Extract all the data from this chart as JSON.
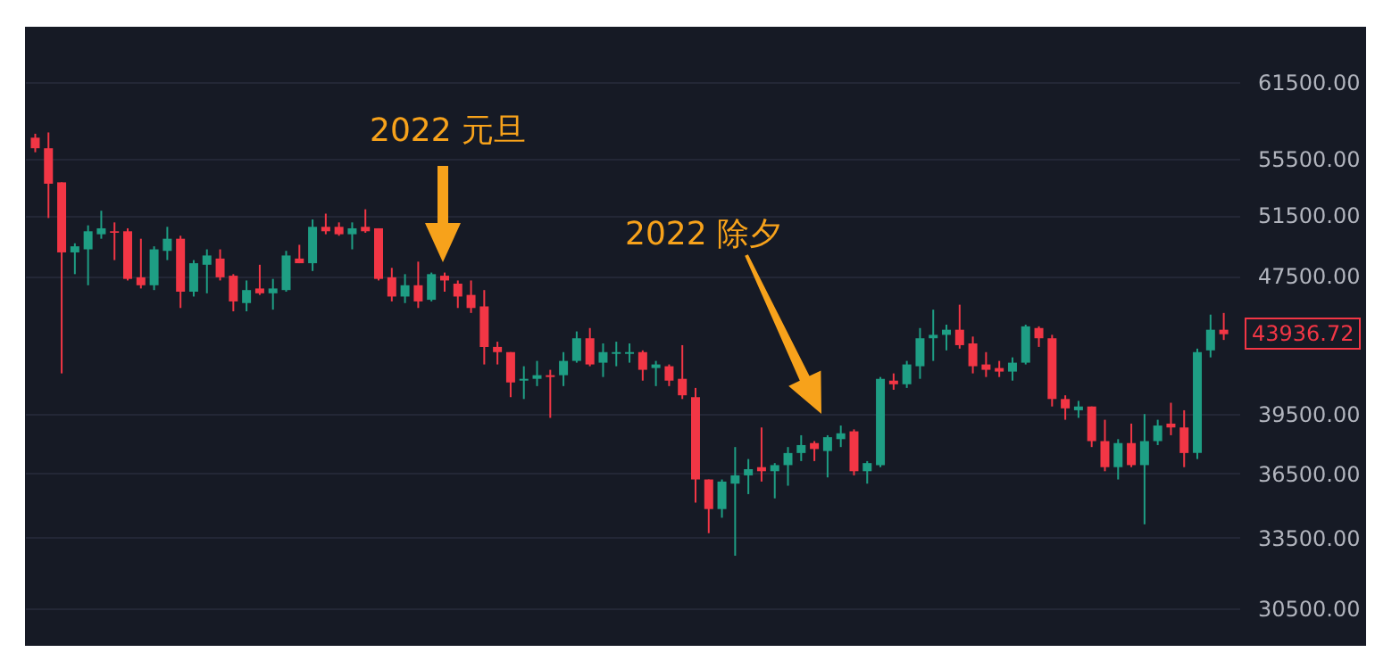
{
  "chart_data": {
    "type": "candlestick",
    "categories": [
      null,
      null,
      null,
      null,
      null,
      null,
      null,
      null,
      null,
      null,
      null,
      null,
      null,
      null,
      null,
      null,
      null,
      null,
      null,
      null,
      null,
      null,
      null,
      null,
      null,
      null,
      null,
      null,
      null,
      null,
      null,
      null,
      null,
      null,
      null,
      null,
      null,
      null,
      null,
      null,
      null,
      null,
      null,
      null,
      null,
      null,
      null,
      null,
      null,
      null,
      null,
      null,
      null,
      null,
      null,
      null,
      null,
      null,
      null,
      null,
      null,
      null,
      null,
      null,
      null,
      null,
      null,
      null,
      null,
      null,
      null,
      null,
      null,
      null,
      null,
      null,
      null,
      null,
      null,
      null,
      null,
      null,
      null,
      null,
      null,
      null,
      null,
      null,
      null,
      null,
      null
    ],
    "ohlc": [
      [
        57100,
        57400,
        56000,
        56300
      ],
      [
        56300,
        57500,
        51300,
        53700
      ],
      [
        53800,
        53800,
        41700,
        49000
      ],
      [
        49000,
        49600,
        47600,
        49400
      ],
      [
        49200,
        50800,
        46900,
        50400
      ],
      [
        50200,
        51800,
        49900,
        50600
      ],
      [
        50400,
        51000,
        48500,
        50300
      ],
      [
        50400,
        50600,
        47200,
        47300
      ],
      [
        47400,
        49900,
        46700,
        46900
      ],
      [
        46900,
        49400,
        46600,
        49200
      ],
      [
        49100,
        50700,
        48500,
        49900
      ],
      [
        49900,
        50100,
        45500,
        46500
      ],
      [
        46500,
        48500,
        46200,
        48300
      ],
      [
        48200,
        49200,
        46400,
        48800
      ],
      [
        48600,
        49200,
        47200,
        47400
      ],
      [
        47500,
        47600,
        45300,
        45900
      ],
      [
        45800,
        47200,
        45300,
        46600
      ],
      [
        46700,
        48200,
        46300,
        46400
      ],
      [
        46400,
        47300,
        45400,
        46700
      ],
      [
        46600,
        49100,
        46500,
        48800
      ],
      [
        48600,
        49500,
        48300,
        48300
      ],
      [
        48300,
        51200,
        47800,
        50700
      ],
      [
        50700,
        51600,
        50200,
        50400
      ],
      [
        50700,
        51000,
        50100,
        50200
      ],
      [
        50200,
        51000,
        49200,
        50600
      ],
      [
        50700,
        51900,
        50300,
        50400
      ],
      [
        50600,
        50600,
        47200,
        47300
      ],
      [
        47400,
        48000,
        45900,
        46200
      ],
      [
        46200,
        47600,
        45800,
        46900
      ],
      [
        46900,
        48400,
        45500,
        45900
      ],
      [
        46000,
        47700,
        45900,
        47600
      ],
      [
        47500,
        47700,
        46500,
        47200
      ],
      [
        47000,
        47200,
        45500,
        46200
      ],
      [
        46300,
        47200,
        45200,
        45500
      ],
      [
        45600,
        46600,
        42200,
        43200
      ],
      [
        43200,
        43500,
        42200,
        42900
      ],
      [
        42900,
        42900,
        40400,
        41200
      ],
      [
        41300,
        42100,
        40300,
        41400
      ],
      [
        41400,
        42400,
        41000,
        41600
      ],
      [
        41600,
        41900,
        39300,
        41500
      ],
      [
        41600,
        42900,
        41000,
        42400
      ],
      [
        42400,
        44100,
        42300,
        43700
      ],
      [
        43700,
        44300,
        42100,
        42200
      ],
      [
        42300,
        43400,
        41500,
        42900
      ],
      [
        42800,
        43500,
        42100,
        42900
      ],
      [
        42800,
        43400,
        42300,
        42900
      ],
      [
        42900,
        43000,
        41300,
        41900
      ],
      [
        42000,
        42400,
        41000,
        42200
      ],
      [
        42100,
        42200,
        41000,
        41300
      ],
      [
        41400,
        43300,
        40300,
        40500
      ],
      [
        40400,
        40900,
        35100,
        36200
      ],
      [
        36200,
        36200,
        33700,
        34800
      ],
      [
        34800,
        36200,
        34400,
        36100
      ],
      [
        36000,
        37800,
        32700,
        36400
      ],
      [
        36400,
        37200,
        35500,
        36700
      ],
      [
        36800,
        38800,
        36100,
        36600
      ],
      [
        36600,
        37000,
        35300,
        36900
      ],
      [
        36900,
        37800,
        35900,
        37500
      ],
      [
        37500,
        38400,
        37100,
        37900
      ],
      [
        38000,
        38100,
        37100,
        37700
      ],
      [
        37600,
        38400,
        36300,
        38300
      ],
      [
        38200,
        38900,
        37800,
        38500
      ],
      [
        38600,
        38700,
        36400,
        36600
      ],
      [
        36600,
        37100,
        36000,
        37000
      ],
      [
        36900,
        41500,
        36800,
        41400
      ],
      [
        41300,
        41700,
        40800,
        41100
      ],
      [
        41100,
        42400,
        40900,
        42200
      ],
      [
        42100,
        44300,
        41400,
        43700
      ],
      [
        43700,
        45400,
        42400,
        43900
      ],
      [
        43900,
        44500,
        43000,
        44200
      ],
      [
        44200,
        45700,
        43100,
        43300
      ],
      [
        43400,
        43800,
        41700,
        42100
      ],
      [
        42200,
        42900,
        41500,
        41900
      ],
      [
        42000,
        42400,
        41500,
        41800
      ],
      [
        41800,
        42600,
        41300,
        42300
      ],
      [
        42300,
        44500,
        42200,
        44400
      ],
      [
        44300,
        44400,
        43200,
        43700
      ],
      [
        43700,
        43900,
        39900,
        40300
      ],
      [
        40300,
        40500,
        39200,
        39800
      ],
      [
        39700,
        40200,
        39300,
        39900
      ],
      [
        39900,
        39900,
        37800,
        38100
      ],
      [
        38100,
        39200,
        36600,
        36800
      ],
      [
        36800,
        38200,
        36200,
        38000
      ],
      [
        38000,
        39000,
        36800,
        36900
      ],
      [
        36900,
        39500,
        34100,
        38100
      ],
      [
        38100,
        39200,
        37900,
        38900
      ],
      [
        39000,
        40100,
        38400,
        38800
      ],
      [
        38800,
        39700,
        36800,
        37500
      ],
      [
        37500,
        43100,
        37200,
        42900
      ],
      [
        43000,
        45100,
        42600,
        44200
      ],
      [
        44200,
        45200,
        43600,
        43936.72
      ]
    ],
    "colors": [
      "#f23645",
      "#f23645",
      "#f23645",
      "#1e9e84",
      "#1e9e84",
      "#1e9e84",
      "#f23645",
      "#f23645",
      "#f23645",
      "#1e9e84",
      "#1e9e84",
      "#f23645",
      "#1e9e84",
      "#1e9e84",
      "#f23645",
      "#f23645",
      "#1e9e84",
      "#f23645",
      "#1e9e84",
      "#1e9e84",
      "#f23645",
      "#1e9e84",
      "#f23645",
      "#f23645",
      "#1e9e84",
      "#f23645",
      "#f23645",
      "#f23645",
      "#1e9e84",
      "#f23645",
      "#1e9e84",
      "#f23645",
      "#f23645",
      "#f23645",
      "#f23645",
      "#f23645",
      "#f23645",
      "#1e9e84",
      "#1e9e84",
      "#f23645",
      "#1e9e84",
      "#1e9e84",
      "#f23645",
      "#1e9e84",
      "#1e9e84",
      "#1e9e84",
      "#f23645",
      "#1e9e84",
      "#f23645",
      "#f23645",
      "#f23645",
      "#f23645",
      "#1e9e84",
      "#1e9e84",
      "#1e9e84",
      "#f23645",
      "#1e9e84",
      "#1e9e84",
      "#1e9e84",
      "#f23645",
      "#1e9e84",
      "#1e9e84",
      "#f23645",
      "#1e9e84",
      "#1e9e84",
      "#f23645",
      "#1e9e84",
      "#1e9e84",
      "#1e9e84",
      "#1e9e84",
      "#f23645",
      "#f23645",
      "#f23645",
      "#f23645",
      "#1e9e84",
      "#1e9e84",
      "#f23645",
      "#f23645",
      "#f23645",
      "#1e9e84",
      "#f23645",
      "#f23645",
      "#1e9e84",
      "#f23645",
      "#1e9e84",
      "#1e9e84",
      "#f23645",
      "#f23645",
      "#1e9e84",
      "#1e9e84",
      "#f23645"
    ],
    "log": true,
    "ylim": [
      29000,
      66200
    ],
    "yticks": [
      {
        "value": 61500,
        "label": "61500.00"
      },
      {
        "value": 55500,
        "label": "55500.00"
      },
      {
        "value": 51500,
        "label": "51500.00"
      },
      {
        "value": 47500,
        "label": "47500.00"
      },
      {
        "value": 39500,
        "label": "39500.00"
      },
      {
        "value": 36500,
        "label": "36500.00"
      },
      {
        "value": 33500,
        "label": "33500.00"
      },
      {
        "value": 30500,
        "label": "30500.00"
      }
    ],
    "tick_labels": "y",
    "grid": "y",
    "annotations": [
      "2022 元旦",
      "2022 除夕",
      "43936.72"
    ]
  }
}
